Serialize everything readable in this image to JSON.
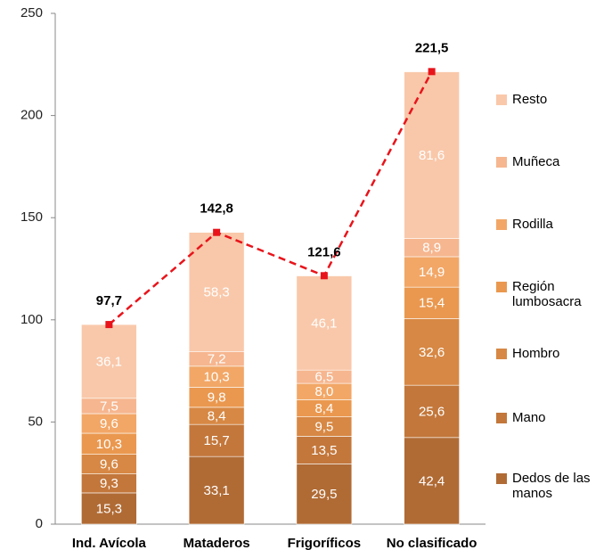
{
  "chart_data": {
    "type": "stacked_bar",
    "categories": [
      "Ind. Avícola",
      "Mataderos",
      "Frigoríficos",
      "No clasificado"
    ],
    "series": [
      {
        "name": "Dedos de las manos",
        "color": "#b06b35",
        "values": [
          15.3,
          33.1,
          29.5,
          42.4
        ],
        "value_labels": [
          "15,3",
          "33,1",
          "29,5",
          "42,4"
        ]
      },
      {
        "name": "Mano",
        "color": "#c3773b",
        "values": [
          9.3,
          15.7,
          13.5,
          25.6
        ],
        "value_labels": [
          "9,3",
          "15,7",
          "13,5",
          "25,6"
        ]
      },
      {
        "name": "Hombro",
        "color": "#d78844",
        "values": [
          9.6,
          8.4,
          9.5,
          32.6
        ],
        "value_labels": [
          "9,6",
          "8,4",
          "9,5",
          "32,6"
        ]
      },
      {
        "name": "Región lumbosacra",
        "color": "#ea984f",
        "values": [
          10.3,
          9.8,
          8.4,
          15.4
        ],
        "value_labels": [
          "10,3",
          "9,8",
          "8,4",
          "15,4"
        ]
      },
      {
        "name": "Rodilla",
        "color": "#f2a767",
        "values": [
          9.6,
          10.3,
          8.0,
          14.9
        ],
        "value_labels": [
          "9,6",
          "10,3",
          "8,0",
          "14,9"
        ]
      },
      {
        "name": "Muñeca",
        "color": "#f6b68f",
        "values": [
          7.5,
          7.2,
          6.5,
          8.9
        ],
        "value_labels": [
          "7,5",
          "7,2",
          "6,5",
          "8,9"
        ]
      },
      {
        "name": "Resto",
        "color": "#f9c8aa",
        "values": [
          36.1,
          58.3,
          46.1,
          81.6
        ],
        "value_labels": [
          "36,1",
          "58,3",
          "46,1",
          "81,6"
        ]
      }
    ],
    "totals": {
      "color": "#e8141b",
      "values": [
        97.7,
        142.8,
        121.6,
        221.5
      ],
      "value_labels": [
        "97,7",
        "142,8",
        "121,6",
        "221,5"
      ]
    },
    "ylim": [
      0,
      250
    ],
    "yticks": [
      0,
      50,
      100,
      150,
      200,
      250
    ]
  }
}
